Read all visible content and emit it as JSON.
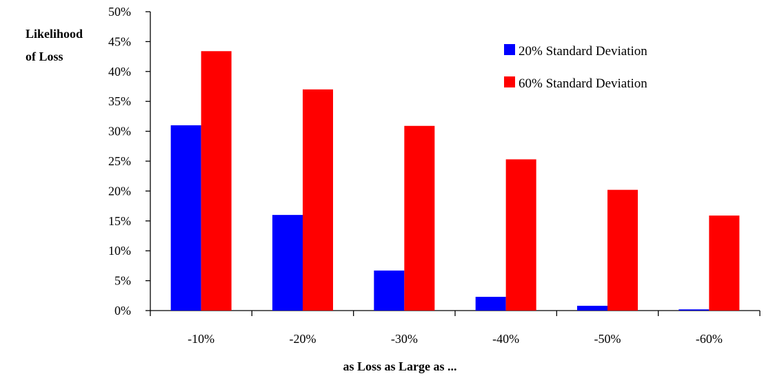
{
  "chart_data": {
    "type": "bar",
    "categories": [
      "-10%",
      "-20%",
      "-30%",
      "-40%",
      "-50%",
      "-60%"
    ],
    "series": [
      {
        "name": "20% Standard Deviation",
        "color": "#0000ff",
        "values": [
          31.0,
          16.0,
          6.7,
          2.3,
          0.8,
          0.2
        ]
      },
      {
        "name": "60% Standard Deviation",
        "color": "#ff0000",
        "values": [
          43.4,
          37.0,
          30.9,
          25.3,
          20.2,
          15.9
        ]
      }
    ],
    "ylabel_lines": [
      "Likelihood",
      "of Loss"
    ],
    "xlabel": "as Loss as Large as ...",
    "ylim": [
      0,
      50
    ],
    "yticks": [
      0,
      5,
      10,
      15,
      20,
      25,
      30,
      35,
      40,
      45,
      50
    ],
    "ytick_suffix": "%",
    "legend_position": "top-right",
    "grid": false
  }
}
